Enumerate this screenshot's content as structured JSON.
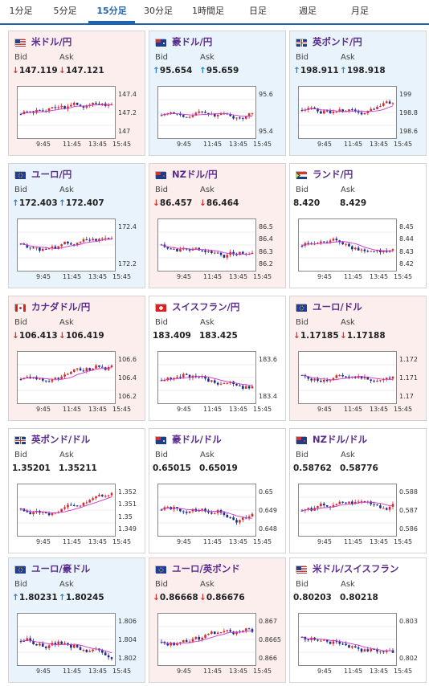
{
  "tabs": [
    "1分足",
    "5分足",
    "15分足",
    "30分足",
    "1時間足",
    "日足",
    "週足",
    "月足"
  ],
  "active_tab": 2,
  "labels": {
    "bid": "Bid",
    "ask": "Ask"
  },
  "colors": {
    "accent": "#1f63b2",
    "title": "#5a2d8c",
    "up": "#2a7fd4",
    "down": "#d93030",
    "candle_up": "#d42b2b",
    "candle_down": "#1a2b8c",
    "ma": "#cc33cc",
    "ma2": "#33aaaa"
  },
  "x_ticks": [
    "9:45",
    "11:45",
    "13:45",
    "15:45"
  ],
  "cards": [
    {
      "title": "米ドル/円",
      "flag": "flag-us",
      "bg": "pink",
      "dir": "down",
      "bid": "147.119",
      "ask": "147.121",
      "yticks": [
        "147.4",
        "147.2",
        "147"
      ]
    },
    {
      "title": "豪ドル/円",
      "flag": "flag-au",
      "bg": "blue",
      "dir": "up",
      "bid": "95.654",
      "ask": "95.659",
      "yticks": [
        "95.6",
        "95.4"
      ]
    },
    {
      "title": "英ポンド/円",
      "flag": "flag-gb",
      "bg": "blue",
      "dir": "up",
      "bid": "198.911",
      "ask": "198.918",
      "yticks": [
        "199",
        "198.8",
        "198.6"
      ]
    },
    {
      "title": "ユーロ/円",
      "flag": "flag-eu",
      "bg": "blue",
      "dir": "up",
      "bid": "172.403",
      "ask": "172.407",
      "yticks": [
        "172.4",
        "172.2"
      ]
    },
    {
      "title": "NZドル/円",
      "flag": "flag-nz",
      "bg": "pink",
      "dir": "down",
      "bid": "86.457",
      "ask": "86.464",
      "yticks": [
        "86.5",
        "86.4",
        "86.3",
        "86.2"
      ]
    },
    {
      "title": "ランド/円",
      "flag": "flag-za",
      "bg": "white",
      "dir": "none",
      "bid": "8.420",
      "ask": "8.429",
      "yticks": [
        "8.45",
        "8.44",
        "8.43",
        "8.42"
      ]
    },
    {
      "title": "カナダドル/円",
      "flag": "flag-ca",
      "bg": "pink",
      "dir": "down",
      "bid": "106.413",
      "ask": "106.419",
      "yticks": [
        "106.6",
        "106.4",
        "106.2"
      ]
    },
    {
      "title": "スイスフラン/円",
      "flag": "flag-ch",
      "bg": "white",
      "dir": "none",
      "bid": "183.409",
      "ask": "183.425",
      "yticks": [
        "183.6",
        "183.4"
      ]
    },
    {
      "title": "ユーロ/ドル",
      "flag": "flag-eu",
      "bg": "pink",
      "dir": "down",
      "bid": "1.17185",
      "ask": "1.17188",
      "yticks": [
        "1.172",
        "1.171",
        "1.17"
      ]
    },
    {
      "title": "英ポンド/ドル",
      "flag": "flag-gb",
      "bg": "white",
      "dir": "none",
      "bid": "1.35201",
      "ask": "1.35211",
      "yticks": [
        "1.352",
        "1.351",
        "1.35",
        "1.349"
      ]
    },
    {
      "title": "豪ドル/ドル",
      "flag": "flag-au",
      "bg": "white",
      "dir": "none",
      "bid": "0.65015",
      "ask": "0.65019",
      "yticks": [
        "0.65",
        "0.649",
        "0.648"
      ]
    },
    {
      "title": "NZドル/ドル",
      "flag": "flag-nz",
      "bg": "white",
      "dir": "none",
      "bid": "0.58762",
      "ask": "0.58776",
      "yticks": [
        "0.588",
        "0.587",
        "0.586"
      ]
    },
    {
      "title": "ユーロ/豪ドル",
      "flag": "flag-eu",
      "bg": "blue",
      "dir": "up",
      "bid": "1.80231",
      "ask": "1.80245",
      "yticks": [
        "1.806",
        "1.804",
        "1.802"
      ]
    },
    {
      "title": "ユーロ/英ポンド",
      "flag": "flag-eu",
      "bg": "pink",
      "dir": "down",
      "bid": "0.86668",
      "ask": "0.86676",
      "yticks": [
        "0.867",
        "0.8665",
        "0.866"
      ]
    },
    {
      "title": "米ドル/スイスフラン",
      "flag": "flag-us",
      "bg": "white",
      "dir": "none",
      "bid": "0.80203",
      "ask": "0.80218",
      "yticks": [
        "0.803",
        "0.802"
      ]
    }
  ]
}
